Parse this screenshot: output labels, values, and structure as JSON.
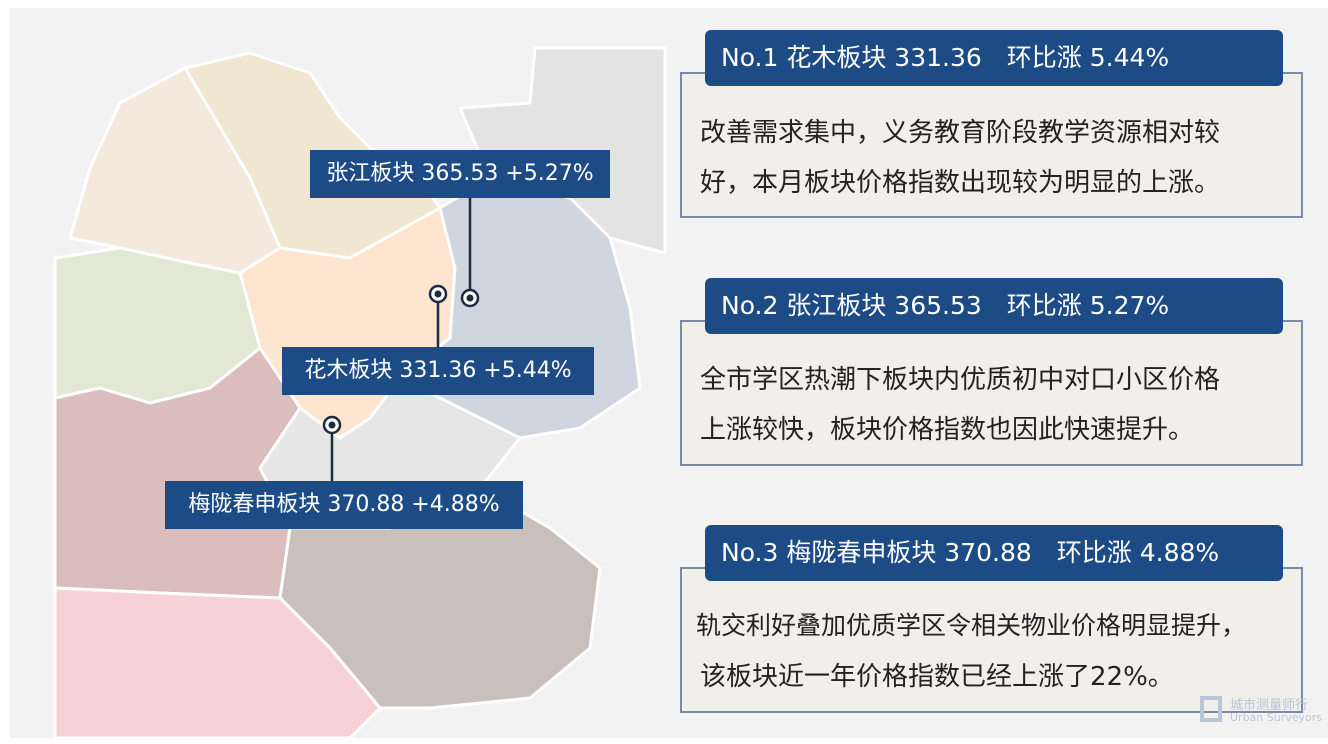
{
  "map_labels": [
    {
      "text": "张江板块 365.53 +5.27%"
    },
    {
      "text": "花木板块 331.36 +5.44%"
    },
    {
      "text": "梅陇春申板块 370.88 +4.88%"
    }
  ],
  "cards": [
    {
      "heading": "No.1 花木板块 331.36　环比涨 5.44%",
      "body_lines": [
        "改善需求集中，义务教育阶段教学资源相对较",
        "好，本月板块价格指数出现较为明显的上涨。"
      ]
    },
    {
      "heading": "No.2 张江板块 365.53　环比涨 5.27%",
      "body_lines": [
        "全市学区热潮下板块内优质初中对口小区价格",
        "上涨较快，板块价格指数也因此快速提升。"
      ]
    },
    {
      "heading": "No.3 梅陇春申板块 370.88　环比涨 4.88%",
      "body_lines": [
        "轨交利好叠加优质学区令相关物业价格明显提升，",
        "该板块近一年价格指数已经上涨了22%。"
      ]
    }
  ],
  "watermark": {
    "cn": "城市测量师行",
    "en": "Urban Surveyors"
  }
}
